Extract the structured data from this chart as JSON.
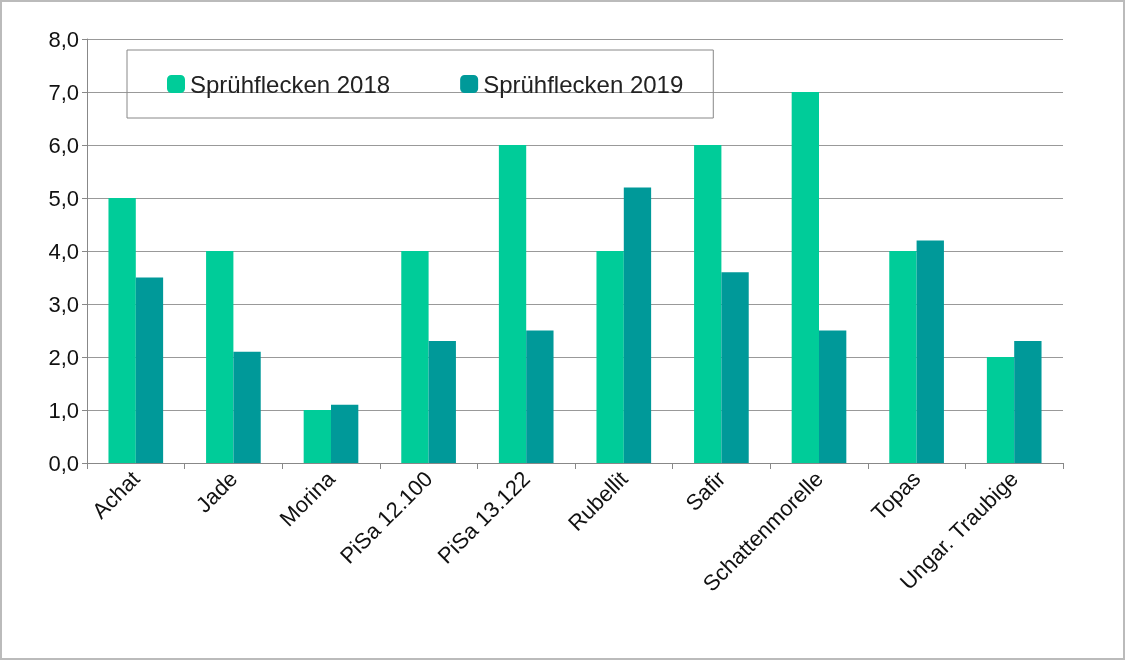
{
  "chart_data": {
    "type": "bar",
    "categories": [
      "Achat",
      "Jade",
      "Morina",
      "PiSa 12.100",
      "PiSa 13.122",
      "Rubellit",
      "Safir",
      "Schattenmorelle",
      "Topas",
      "Ungar. Traubige"
    ],
    "series": [
      {
        "name": "Sprühflecken 2018",
        "color": "#00cc99",
        "values": [
          5,
          4,
          1,
          4,
          6,
          4,
          6,
          7,
          4,
          2
        ]
      },
      {
        "name": "Sprühflecken 2019",
        "color": "#009999",
        "values": [
          3.5,
          2.1,
          1.1,
          2.3,
          2.5,
          5.2,
          3.6,
          2.5,
          4.2,
          2.3
        ]
      }
    ],
    "ylim": [
      0,
      8
    ],
    "yticks": [
      {
        "value": 0,
        "label": "0,0"
      },
      {
        "value": 1,
        "label": "1,0"
      },
      {
        "value": 2,
        "label": "2,0"
      },
      {
        "value": 3,
        "label": "3,0"
      },
      {
        "value": 4,
        "label": "4,0"
      },
      {
        "value": 5,
        "label": "5,0"
      },
      {
        "value": 6,
        "label": "6,0"
      },
      {
        "value": 7,
        "label": "7,0"
      },
      {
        "value": 8,
        "label": "8,0"
      }
    ],
    "grid": "y",
    "legend": "top left"
  }
}
